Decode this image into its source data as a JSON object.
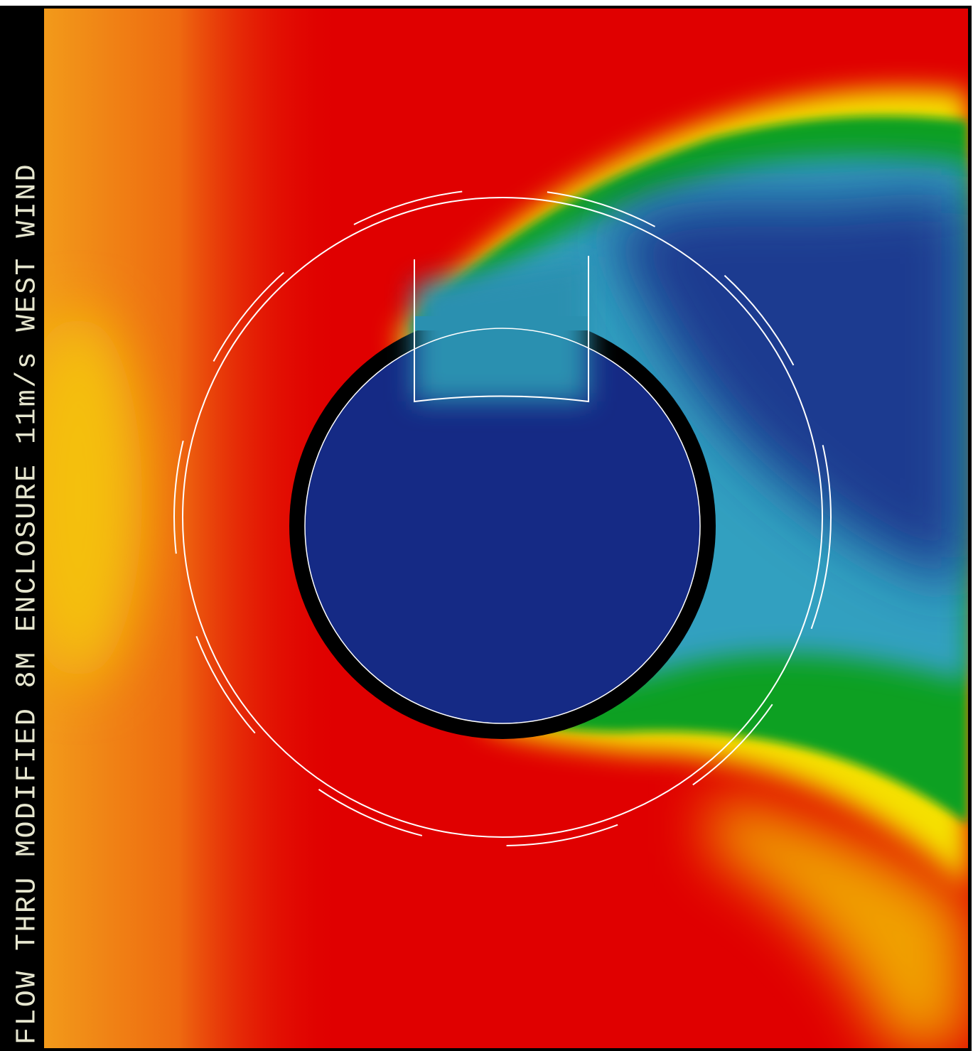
{
  "caption": "FLOW THRU MODIFIED 8M ENCLOSURE 11m/s WEST WIND"
}
